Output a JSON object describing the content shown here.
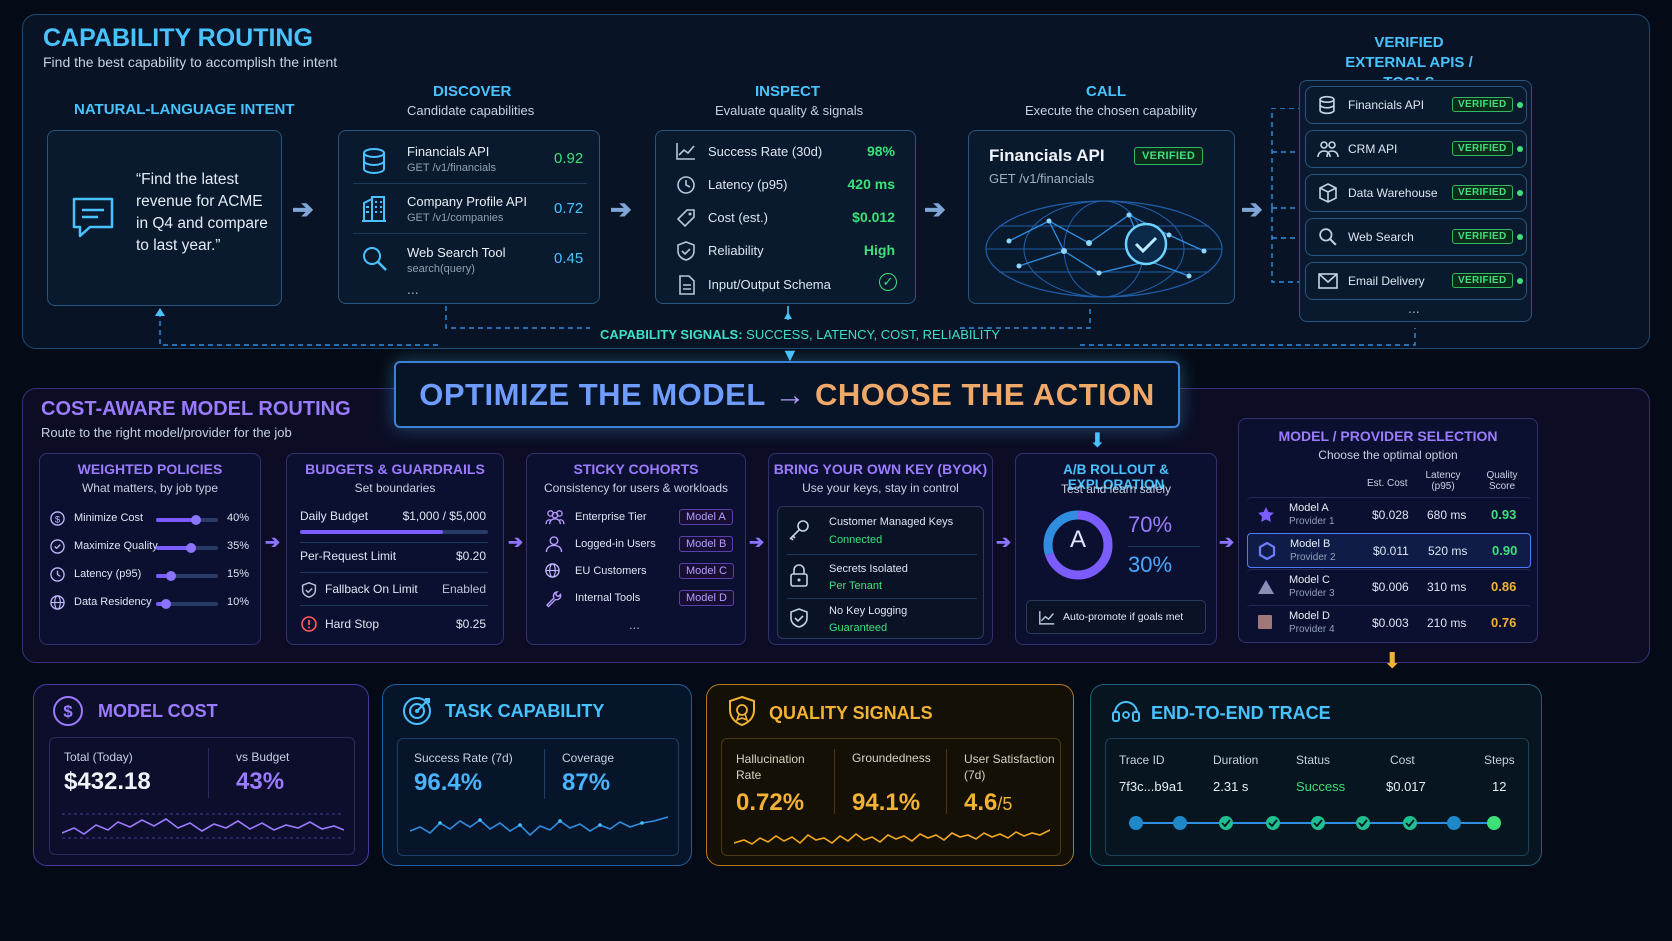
{
  "capability": {
    "title": "CAPABILITY ROUTING",
    "subtitle": "Find the best capability to accomplish the intent",
    "intent": {
      "title": "NATURAL-LANGUAGE INTENT",
      "text": "“Find the latest revenue for ACME in Q4 and compare to last year.”"
    },
    "discover": {
      "title": "DISCOVER",
      "subtitle": "Candidate capabilities",
      "items": [
        {
          "name": "Financials API",
          "path": "GET /v1/financials",
          "score": "0.92",
          "icon": "database-icon"
        },
        {
          "name": "Company Profile API",
          "path": "GET /v1/companies",
          "score": "0.72",
          "icon": "building-icon"
        },
        {
          "name": "Web Search Tool",
          "path": "search(query)",
          "score": "0.45",
          "icon": "search-icon"
        }
      ],
      "more": "..."
    },
    "inspect": {
      "title": "INSPECT",
      "subtitle": "Evaluate quality & signals",
      "items": [
        {
          "label": "Success Rate (30d)",
          "value": "98%",
          "icon": "chart-line-icon"
        },
        {
          "label": "Latency (p95)",
          "value": "420 ms",
          "icon": "clock-icon"
        },
        {
          "label": "Cost (est.)",
          "value": "$0.012",
          "icon": "tag-icon"
        },
        {
          "label": "Reliability",
          "value": "High",
          "icon": "shield-check-icon"
        },
        {
          "label": "Input/Output Schema",
          "value": "✓",
          "icon": "document-icon"
        }
      ]
    },
    "call": {
      "title": "CALL",
      "subtitle": "Execute the chosen capability",
      "api": "Financials API",
      "badge": "VERIFIED",
      "path": "GET /v1/financials"
    },
    "external": {
      "title": "VERIFIED EXTERNAL APIS / TOOLS",
      "items": [
        {
          "name": "Financials API",
          "badge": "VERIFIED",
          "icon": "database-icon"
        },
        {
          "name": "CRM API",
          "badge": "VERIFIED",
          "icon": "users-icon"
        },
        {
          "name": "Data Warehouse",
          "badge": "VERIFIED",
          "icon": "cube-icon"
        },
        {
          "name": "Web Search",
          "badge": "VERIFIED",
          "icon": "search-icon"
        },
        {
          "name": "Email Delivery",
          "badge": "VERIFIED",
          "icon": "mail-icon"
        }
      ],
      "more": "..."
    },
    "signals_label": "CAPABILITY SIGNALS:",
    "signals_text": "SUCCESS, LATENCY, COST, RELIABILITY"
  },
  "banner": {
    "left": "OPTIMIZE THE MODEL",
    "arrow": "→",
    "right": "CHOOSE THE ACTION"
  },
  "cost_routing": {
    "title": "COST-AWARE MODEL ROUTING",
    "subtitle": "Route to the right model/provider for the job",
    "weighted": {
      "title": "WEIGHTED POLICIES",
      "subtitle": "What matters, by job type",
      "items": [
        {
          "label": "Minimize Cost",
          "value": "40%",
          "level": 0.4,
          "icon": "dollar-circle-icon"
        },
        {
          "label": "Maximize Quality",
          "value": "35%",
          "level": 0.35,
          "icon": "badge-icon"
        },
        {
          "label": "Latency (p95)",
          "value": "15%",
          "level": 0.15,
          "icon": "clock-icon"
        },
        {
          "label": "Data Residency",
          "value": "10%",
          "level": 0.1,
          "icon": "globe-icon"
        }
      ]
    },
    "budgets": {
      "title": "BUDGETS & GUARDRAILS",
      "subtitle": "Set boundaries",
      "daily_label": "Daily Budget",
      "daily_value": "$1,000 / $5,000",
      "daily_level": 0.8,
      "items": [
        {
          "label": "Per-Request Limit",
          "value": "$0.20",
          "icon": ""
        },
        {
          "label": "Fallback On Limit",
          "value": "Enabled",
          "icon": "shield-icon"
        },
        {
          "label": "Hard Stop",
          "value": "$0.25",
          "icon": "stop-icon"
        }
      ]
    },
    "cohorts": {
      "title": "STICKY COHORTS",
      "subtitle": "Consistency for users & workloads",
      "items": [
        {
          "label": "Enterprise Tier",
          "model": "Model A",
          "icon": "group-icon"
        },
        {
          "label": "Logged-in Users",
          "model": "Model B",
          "icon": "user-icon"
        },
        {
          "label": "EU Customers",
          "model": "Model C",
          "icon": "globe-icon"
        },
        {
          "label": "Internal Tools",
          "model": "Model D",
          "icon": "wrench-icon"
        }
      ],
      "more": "..."
    },
    "byok": {
      "title": "BRING YOUR OWN KEY (BYOK)",
      "subtitle": "Use your keys, stay in control",
      "items": [
        {
          "label": "Customer Managed Keys",
          "status": "Connected",
          "icon": "key-icon"
        },
        {
          "label": "Secrets Isolated",
          "status": "Per Tenant",
          "icon": "lock-icon"
        },
        {
          "label": "No Key Logging",
          "status": "Guaranteed",
          "icon": "shield-check-icon"
        }
      ]
    },
    "ab": {
      "title": "A/B ROLLOUT & EXPLORATION",
      "subtitle": "Test and learn safely",
      "letter": "A",
      "pct_a": "70%",
      "pct_b": "30%",
      "share_a": 0.7,
      "promote": "Auto-promote if goals met"
    },
    "selection": {
      "title": "MODEL / PROVIDER SELECTION",
      "subtitle": "Choose the optimal option",
      "headers": [
        "Est. Cost",
        "Latency (p95)",
        "Quality Score"
      ],
      "rows": [
        {
          "model": "Model A",
          "provider": "Provider 1",
          "cost": "$0.028",
          "latency": "680 ms",
          "score": "0.93",
          "score_color": "#3ee07a",
          "icon": "star-icon"
        },
        {
          "model": "Model B",
          "provider": "Provider 2",
          "cost": "$0.011",
          "latency": "520 ms",
          "score": "0.90",
          "score_color": "#3ee07a",
          "icon": "hexagon-icon"
        },
        {
          "model": "Model C",
          "provider": "Provider 3",
          "cost": "$0.006",
          "latency": "310 ms",
          "score": "0.86",
          "score_color": "#f2b233",
          "icon": "triangle-icon"
        },
        {
          "model": "Model D",
          "provider": "Provider 4",
          "cost": "$0.003",
          "latency": "210 ms",
          "score": "0.76",
          "score_color": "#f2b233",
          "icon": "square-icon"
        }
      ]
    }
  },
  "metrics": {
    "model_cost": {
      "title": "MODEL COST",
      "total_label": "Total (Today)",
      "total_value": "$432.18",
      "budget_label": "vs Budget",
      "budget_value": "43%"
    },
    "task_capability": {
      "title": "TASK CAPABILITY",
      "success_label": "Success Rate (7d)",
      "success_value": "96.4%",
      "coverage_label": "Coverage",
      "coverage_value": "87%"
    },
    "quality": {
      "title": "QUALITY SIGNALS",
      "halluc_label": "Hallucination Rate",
      "halluc_value": "0.72%",
      "ground_label": "Groundedness",
      "ground_value": "94.1%",
      "sat_label": "User Satisfaction (7d)",
      "sat_value": "4.6",
      "sat_suffix": "/5"
    },
    "trace": {
      "title": "END-TO-END TRACE",
      "headers": [
        "Trace ID",
        "Duration",
        "Status",
        "Cost",
        "Steps"
      ],
      "values": [
        "7f3c...b9a1",
        "2.31 s",
        "Success",
        "$0.017",
        "12"
      ]
    }
  },
  "colors": {
    "cyan": "#49c3ff",
    "purple": "#9b7bff",
    "green": "#3ee07a",
    "orange": "#f2b233"
  }
}
